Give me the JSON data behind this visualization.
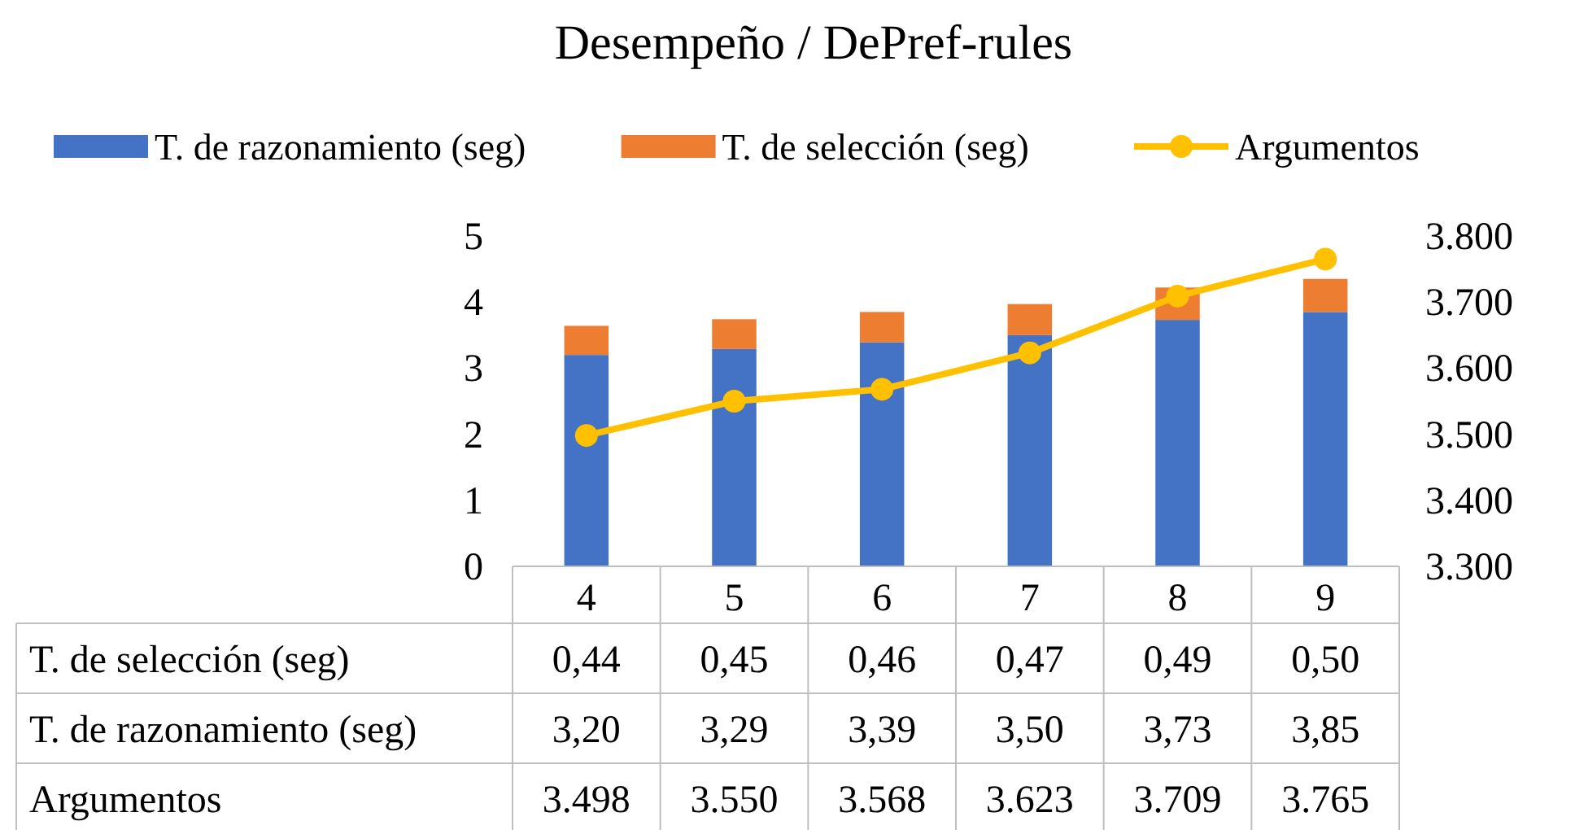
{
  "chart_data": {
    "type": "bar",
    "title": "Desempeño / DePref-rules",
    "categories": [
      "4",
      "5",
      "6",
      "7",
      "8",
      "9"
    ],
    "stacked": true,
    "legend": "top",
    "marker": "circle",
    "ylim": [
      0,
      5
    ],
    "yticks": [
      0,
      1,
      2,
      3,
      4,
      5
    ],
    "y2lim": [
      3300,
      3800
    ],
    "y2ticks": [
      {
        "value": 3300,
        "label": "3.300"
      },
      {
        "value": 3400,
        "label": "3.400"
      },
      {
        "value": 3500,
        "label": "3.500"
      },
      {
        "value": 3600,
        "label": "3.600"
      },
      {
        "value": 3700,
        "label": "3.700"
      },
      {
        "value": 3800,
        "label": "3.800"
      }
    ],
    "series": [
      {
        "name": "T. de razonamiento (seg)",
        "color": "#4472c4",
        "values": [
          3.2,
          3.29,
          3.39,
          3.5,
          3.73,
          3.85
        ],
        "value_labels": [
          "3,20",
          "3,29",
          "3,39",
          "3,50",
          "3,73",
          "3,85"
        ]
      },
      {
        "name": "T. de selección (seg)",
        "color": "#ed7d31",
        "values": [
          0.44,
          0.45,
          0.46,
          0.47,
          0.49,
          0.5
        ],
        "value_labels": [
          "0,44",
          "0,45",
          "0,46",
          "0,47",
          "0,49",
          "0,50"
        ]
      },
      {
        "name": "Argumentos",
        "type": "line",
        "axis": "y2",
        "color": "#ffc000",
        "values": [
          3498,
          3550,
          3568,
          3623,
          3709,
          3765
        ],
        "value_labels": [
          "3.498",
          "3.550",
          "3.568",
          "3.623",
          "3.709",
          "3.765"
        ]
      }
    ]
  }
}
